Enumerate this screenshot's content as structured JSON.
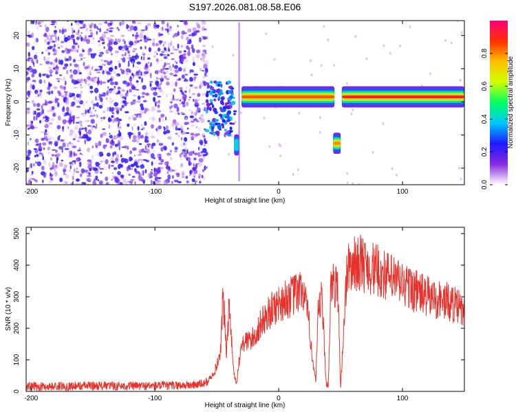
{
  "title": "S197.2026.081.08.58.E06",
  "chart_data": [
    {
      "id": "spectrogram",
      "type": "heatmap",
      "title": "S197.2026.081.08.58.E06",
      "xlabel": "Height of straight line (km)",
      "ylabel": "Frequency (Hz)",
      "xlim": [
        -204,
        150
      ],
      "ylim": [
        -25,
        24.5
      ],
      "xticks": [
        -200,
        -100,
        0,
        100
      ],
      "yticks": [
        -20,
        -10,
        0,
        10,
        20
      ],
      "colorbar": {
        "label": "Normalized spectral amplitude",
        "range": [
          0,
          1
        ],
        "ticks": [
          0.0,
          0.2,
          0.4,
          0.6,
          0.8
        ],
        "tick_labels": [
          "0.0",
          "0.2",
          "0.4",
          "0.6",
          "0.8"
        ],
        "colors": [
          "#ffffff",
          "#8a2be2",
          "#1a1aff",
          "#00c8ff",
          "#00ff60",
          "#d0ff00",
          "#ffc000",
          "#ff3000",
          "#ff007a"
        ]
      },
      "regions": [
        {
          "name": "noise",
          "x_range": [
            -204,
            -58
          ],
          "freq_range": [
            -25,
            24.5
          ],
          "amplitude": 0.15
        },
        {
          "name": "onset-cluster",
          "x_range": [
            -58,
            -35
          ],
          "freq_range": [
            -10,
            6
          ],
          "amplitude": 0.35
        },
        {
          "name": "signal-band-1",
          "x_range": [
            -30,
            45
          ],
          "center_freq": 1.5,
          "amplitude": 0.85
        },
        {
          "name": "side-lobe-1",
          "x_range": [
            -36,
            -32
          ],
          "center_freq": -13,
          "amplitude": 0.4
        },
        {
          "name": "side-lobe-2",
          "x_range": [
            44,
            50
          ],
          "center_freq": -12.5,
          "amplitude": 0.8
        },
        {
          "name": "signal-band-2",
          "x_range": [
            51,
            150
          ],
          "center_freq": 1.5,
          "amplitude": 0.95
        }
      ]
    },
    {
      "id": "snr",
      "type": "line",
      "xlabel": "Height of straight line (km)",
      "ylabel": "SNR (10 * v/v)",
      "xlim": [
        -204,
        150
      ],
      "ylim": [
        0,
        520
      ],
      "xticks": [
        -200,
        -100,
        0,
        100
      ],
      "yticks": [
        0,
        100,
        200,
        300,
        400,
        500
      ],
      "series": [
        {
          "name": "SNR",
          "color": "#e8312a",
          "x": [
            -204,
            -180,
            -150,
            -120,
            -90,
            -70,
            -60,
            -55,
            -50,
            -47,
            -45,
            -42,
            -40,
            -38,
            -36,
            -34,
            -32,
            -30,
            -25,
            -20,
            -15,
            -10,
            -5,
            0,
            5,
            10,
            15,
            20,
            25,
            28,
            30,
            32,
            35,
            38,
            40,
            42,
            45,
            48,
            50,
            55,
            58,
            60,
            65,
            70,
            80,
            90,
            100,
            110,
            120,
            130,
            140,
            150
          ],
          "y": [
            15,
            16,
            18,
            17,
            18,
            20,
            25,
            40,
            80,
            130,
            300,
            120,
            280,
            150,
            50,
            30,
            90,
            150,
            160,
            170,
            210,
            240,
            260,
            280,
            290,
            300,
            310,
            320,
            200,
            80,
            30,
            250,
            300,
            40,
            10,
            320,
            340,
            320,
            10,
            380,
            395,
            400,
            410,
            400,
            380,
            360,
            340,
            320,
            300,
            290,
            280,
            250
          ]
        }
      ]
    }
  ]
}
